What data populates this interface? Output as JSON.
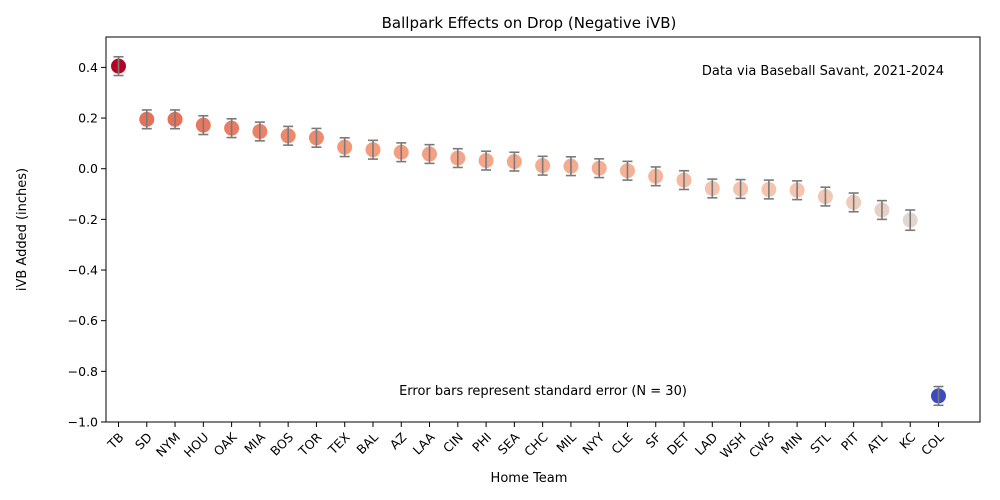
{
  "chart_data": {
    "type": "scatter",
    "title": "Ballpark Effects on Drop (Negative iVB)",
    "xlabel": "Home Team",
    "ylabel": "iVB Added (inches)",
    "ylim": [
      -1.0,
      0.52
    ],
    "yticks": [
      0.4,
      0.2,
      0.0,
      -0.2,
      -0.4,
      -0.6,
      -0.8,
      -1.0
    ],
    "ytick_labels": [
      "0.4",
      "0.2",
      "0.0",
      "−0.2",
      "−0.4",
      "−0.6",
      "−0.8",
      "−1.0"
    ],
    "grid": false,
    "categories": [
      "TB",
      "SD",
      "NYM",
      "HOU",
      "OAK",
      "MIA",
      "BOS",
      "TOR",
      "TEX",
      "BAL",
      "AZ",
      "LAA",
      "CIN",
      "PHI",
      "SEA",
      "CHC",
      "MIL",
      "NYY",
      "CLE",
      "SF",
      "DET",
      "LAD",
      "WSH",
      "CWS",
      "MIN",
      "STL",
      "PIT",
      "ATL",
      "KC",
      "COL"
    ],
    "values": [
      0.405,
      0.195,
      0.195,
      0.172,
      0.16,
      0.147,
      0.13,
      0.122,
      0.085,
      0.075,
      0.065,
      0.058,
      0.042,
      0.032,
      0.028,
      0.012,
      0.01,
      0.002,
      -0.008,
      -0.03,
      -0.045,
      -0.078,
      -0.08,
      -0.082,
      -0.085,
      -0.11,
      -0.133,
      -0.163,
      -0.203,
      -0.897
    ],
    "errors": [
      0.037,
      0.037,
      0.037,
      0.037,
      0.037,
      0.037,
      0.037,
      0.037,
      0.037,
      0.037,
      0.037,
      0.037,
      0.037,
      0.037,
      0.037,
      0.037,
      0.037,
      0.037,
      0.037,
      0.037,
      0.037,
      0.037,
      0.037,
      0.037,
      0.037,
      0.037,
      0.037,
      0.037,
      0.04,
      0.037
    ],
    "colormap": "coolwarm",
    "annotations": [
      {
        "text": "Data via Baseball Savant, 2021-2024",
        "position": "top-right"
      },
      {
        "text": "Error bars represent standard error (N = 30)",
        "position": "bottom-center"
      }
    ]
  }
}
